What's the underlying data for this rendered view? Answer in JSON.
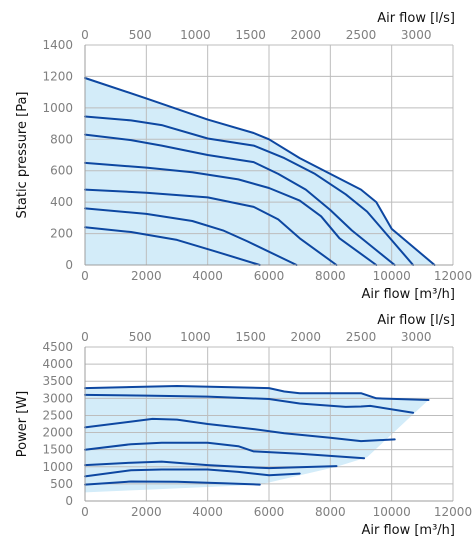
{
  "colors": {
    "line": "#0d47a1",
    "fill": "#d3ecf9",
    "grid": "#bdbdbd",
    "tick": "#7f7f7f"
  },
  "chart_data": [
    {
      "type": "line",
      "xlabel": "Air flow [m³/h]",
      "x2label": "Air flow [l/s]",
      "ylabel": "Static pressure [Pa]",
      "xlim": [
        0,
        12000
      ],
      "ylim": [
        0,
        1400
      ],
      "x_ticks": [
        0,
        2000,
        4000,
        6000,
        8000,
        10000,
        12000
      ],
      "x2_ticks": [
        0,
        500,
        1000,
        1500,
        2000,
        2500,
        3000
      ],
      "y_ticks": [
        0,
        200,
        400,
        600,
        800,
        1000,
        1200,
        1400
      ],
      "grid": true,
      "envelope": [
        [
          0,
          1190
        ],
        [
          2000,
          1060
        ],
        [
          4000,
          925
        ],
        [
          5500,
          840
        ],
        [
          6000,
          800
        ],
        [
          7000,
          680
        ],
        [
          8000,
          580
        ],
        [
          9000,
          480
        ],
        [
          9500,
          400
        ],
        [
          10000,
          230
        ],
        [
          11400,
          0
        ],
        [
          0,
          0
        ]
      ],
      "series": [
        {
          "x": [
            0,
            2000,
            4000,
            5500,
            6000,
            7000,
            8000,
            9000,
            9500,
            10000,
            11400
          ],
          "y": [
            1190,
            1060,
            925,
            840,
            800,
            680,
            580,
            480,
            400,
            230,
            0
          ]
        },
        {
          "x": [
            0,
            1500,
            2500,
            4000,
            5500,
            6500,
            7500,
            8500,
            9200,
            10700
          ],
          "y": [
            945,
            920,
            890,
            805,
            760,
            680,
            580,
            450,
            340,
            0
          ]
        },
        {
          "x": [
            0,
            1500,
            2500,
            4000,
            5500,
            6300,
            7200,
            8000,
            8700,
            10100
          ],
          "y": [
            830,
            795,
            760,
            700,
            655,
            580,
            480,
            350,
            220,
            0
          ]
        },
        {
          "x": [
            0,
            2000,
            3500,
            5000,
            6000,
            7000,
            7700,
            8300,
            9500
          ],
          "y": [
            650,
            620,
            590,
            545,
            490,
            410,
            310,
            170,
            0
          ]
        },
        {
          "x": [
            0,
            2000,
            4000,
            5500,
            6300,
            7000,
            8200
          ],
          "y": [
            480,
            460,
            430,
            370,
            290,
            170,
            0
          ]
        },
        {
          "x": [
            0,
            2000,
            3500,
            4500,
            5300,
            6900
          ],
          "y": [
            360,
            325,
            280,
            220,
            150,
            0
          ]
        },
        {
          "x": [
            0,
            1500,
            3000,
            4200,
            5700
          ],
          "y": [
            240,
            210,
            160,
            90,
            0
          ]
        }
      ]
    },
    {
      "type": "line",
      "xlabel": "Air flow [m³/h]",
      "x2label": "Air flow [l/s]",
      "ylabel": "Power [W]",
      "xlim": [
        0,
        12000
      ],
      "ylim": [
        0,
        4500
      ],
      "x_ticks": [
        0,
        2000,
        4000,
        6000,
        8000,
        10000,
        12000
      ],
      "x2_ticks": [
        0,
        500,
        1000,
        1500,
        2000,
        2500,
        3000
      ],
      "y_ticks": [
        0,
        500,
        1000,
        1500,
        2000,
        2500,
        3000,
        3500,
        4000,
        4500
      ],
      "grid": true,
      "envelope": [
        [
          0,
          3300
        ],
        [
          3000,
          3360
        ],
        [
          6000,
          3300
        ],
        [
          7000,
          3150
        ],
        [
          9000,
          3150
        ],
        [
          9500,
          3000
        ],
        [
          11200,
          2950
        ],
        [
          9200,
          1280
        ],
        [
          8200,
          1000
        ],
        [
          5700,
          480
        ],
        [
          2000,
          330
        ],
        [
          0,
          250
        ]
      ],
      "series": [
        {
          "x": [
            0,
            3000,
            6000,
            6500,
            7000,
            9000,
            9500,
            11200
          ],
          "y": [
            3300,
            3360,
            3300,
            3200,
            3150,
            3150,
            3000,
            2950
          ]
        },
        {
          "x": [
            0,
            2000,
            4000,
            6000,
            7000,
            8500,
            9000,
            9300,
            10700
          ],
          "y": [
            3100,
            3080,
            3050,
            2980,
            2850,
            2750,
            2760,
            2780,
            2580
          ]
        },
        {
          "x": [
            0,
            1500,
            2200,
            3000,
            4000,
            5500,
            6500,
            8000,
            9000,
            10100
          ],
          "y": [
            2150,
            2320,
            2400,
            2380,
            2250,
            2100,
            1980,
            1850,
            1750,
            1800
          ]
        },
        {
          "x": [
            0,
            1500,
            2500,
            4000,
            5000,
            5500,
            7000,
            9100
          ],
          "y": [
            1500,
            1660,
            1700,
            1700,
            1600,
            1450,
            1380,
            1250
          ]
        },
        {
          "x": [
            0,
            1500,
            2500,
            4000,
            5000,
            6000,
            8200
          ],
          "y": [
            1050,
            1120,
            1150,
            1050,
            1000,
            960,
            1020
          ]
        },
        {
          "x": [
            0,
            1500,
            2500,
            4000,
            5000,
            6000,
            7000
          ],
          "y": [
            720,
            900,
            920,
            920,
            850,
            750,
            800
          ]
        },
        {
          "x": [
            0,
            1500,
            3000,
            4500,
            5700
          ],
          "y": [
            480,
            570,
            560,
            520,
            480
          ]
        }
      ]
    }
  ]
}
